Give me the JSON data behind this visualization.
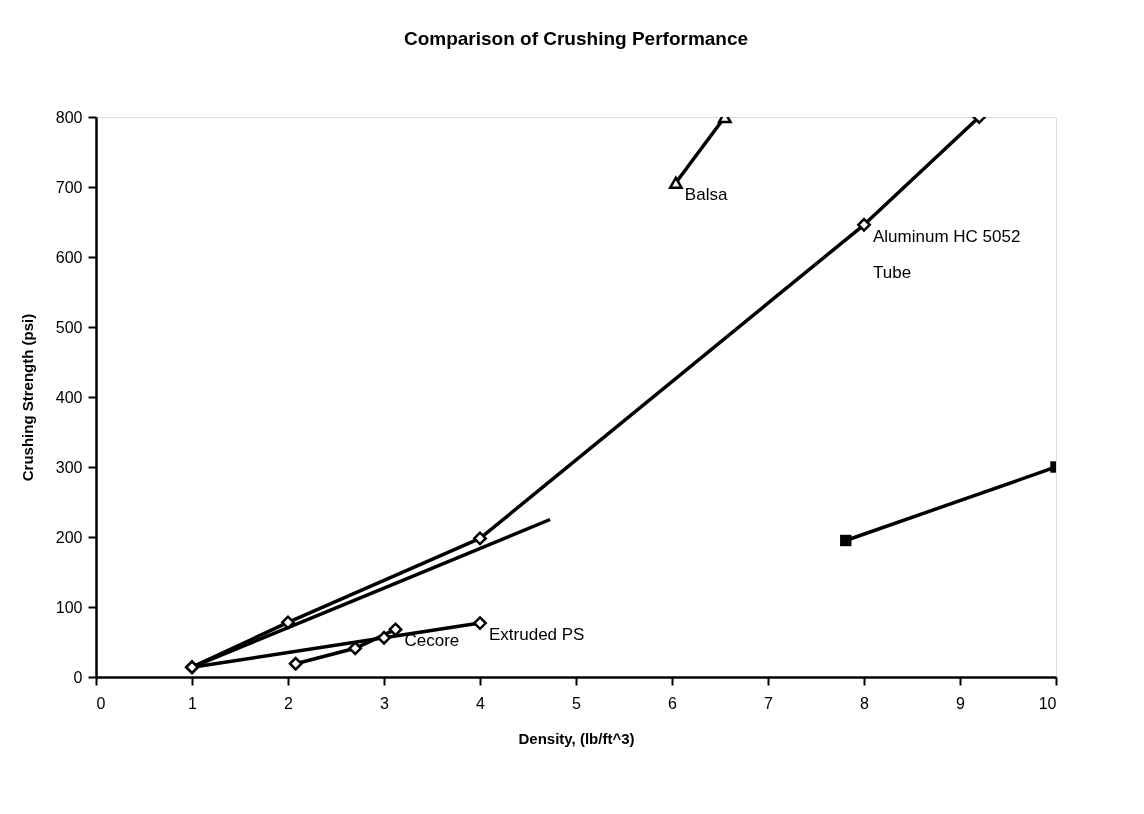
{
  "chart_data": {
    "type": "line",
    "title": "Comparison of Crushing Performance",
    "xlabel": "Density,    (lb/ft^3)",
    "ylabel": "Crushing   Strength   (psi)",
    "xlim": [
      0,
      10
    ],
    "xticks": [
      0,
      1,
      2,
      3,
      4,
      5,
      6,
      7,
      8,
      9,
      10
    ],
    "ylim": [
      0,
      800
    ],
    "yticks": [
      0,
      100,
      200,
      300,
      400,
      500,
      600,
      700,
      800
    ],
    "grid": false,
    "legend": false,
    "line_style": "solid",
    "series": [
      {
        "color": "#000000",
        "marker": "diamond",
        "x": [
          1,
          2,
          4,
          8,
          9.2
        ],
        "values": [
          14,
          78,
          198,
          646,
          800
        ]
      },
      {
        "color": "#000000",
        "marker": "none",
        "x": [
          1,
          3,
          4.73
        ],
        "values": [
          14,
          127,
          225
        ]
      },
      {
        "color": "#000000",
        "marker": "diamond",
        "x": [
          1,
          3,
          4
        ],
        "values": [
          14,
          56,
          77
        ]
      },
      {
        "color": "#000000",
        "marker": "diamond",
        "x": [
          2.08,
          2.7,
          3.12
        ],
        "values": [
          19,
          41,
          68
        ]
      },
      {
        "color": "#000000",
        "marker": "triangle",
        "x": [
          6.04,
          6.55
        ],
        "values": [
          706,
          800
        ]
      },
      {
        "color": "#000000",
        "marker": "square",
        "x": [
          7.81,
          10
        ],
        "values": [
          195,
          300
        ]
      }
    ],
    "annotations": [
      {
        "text": "Balsa",
        "x": 6.04,
        "y": 706
      },
      {
        "text": "Aluminum HC 5052\nTube",
        "x": 8,
        "y": 646
      },
      {
        "text": "Extruded PS",
        "x": 4,
        "y": 77
      },
      {
        "text": "Cecore",
        "x": 3.12,
        "y": 68
      }
    ]
  }
}
